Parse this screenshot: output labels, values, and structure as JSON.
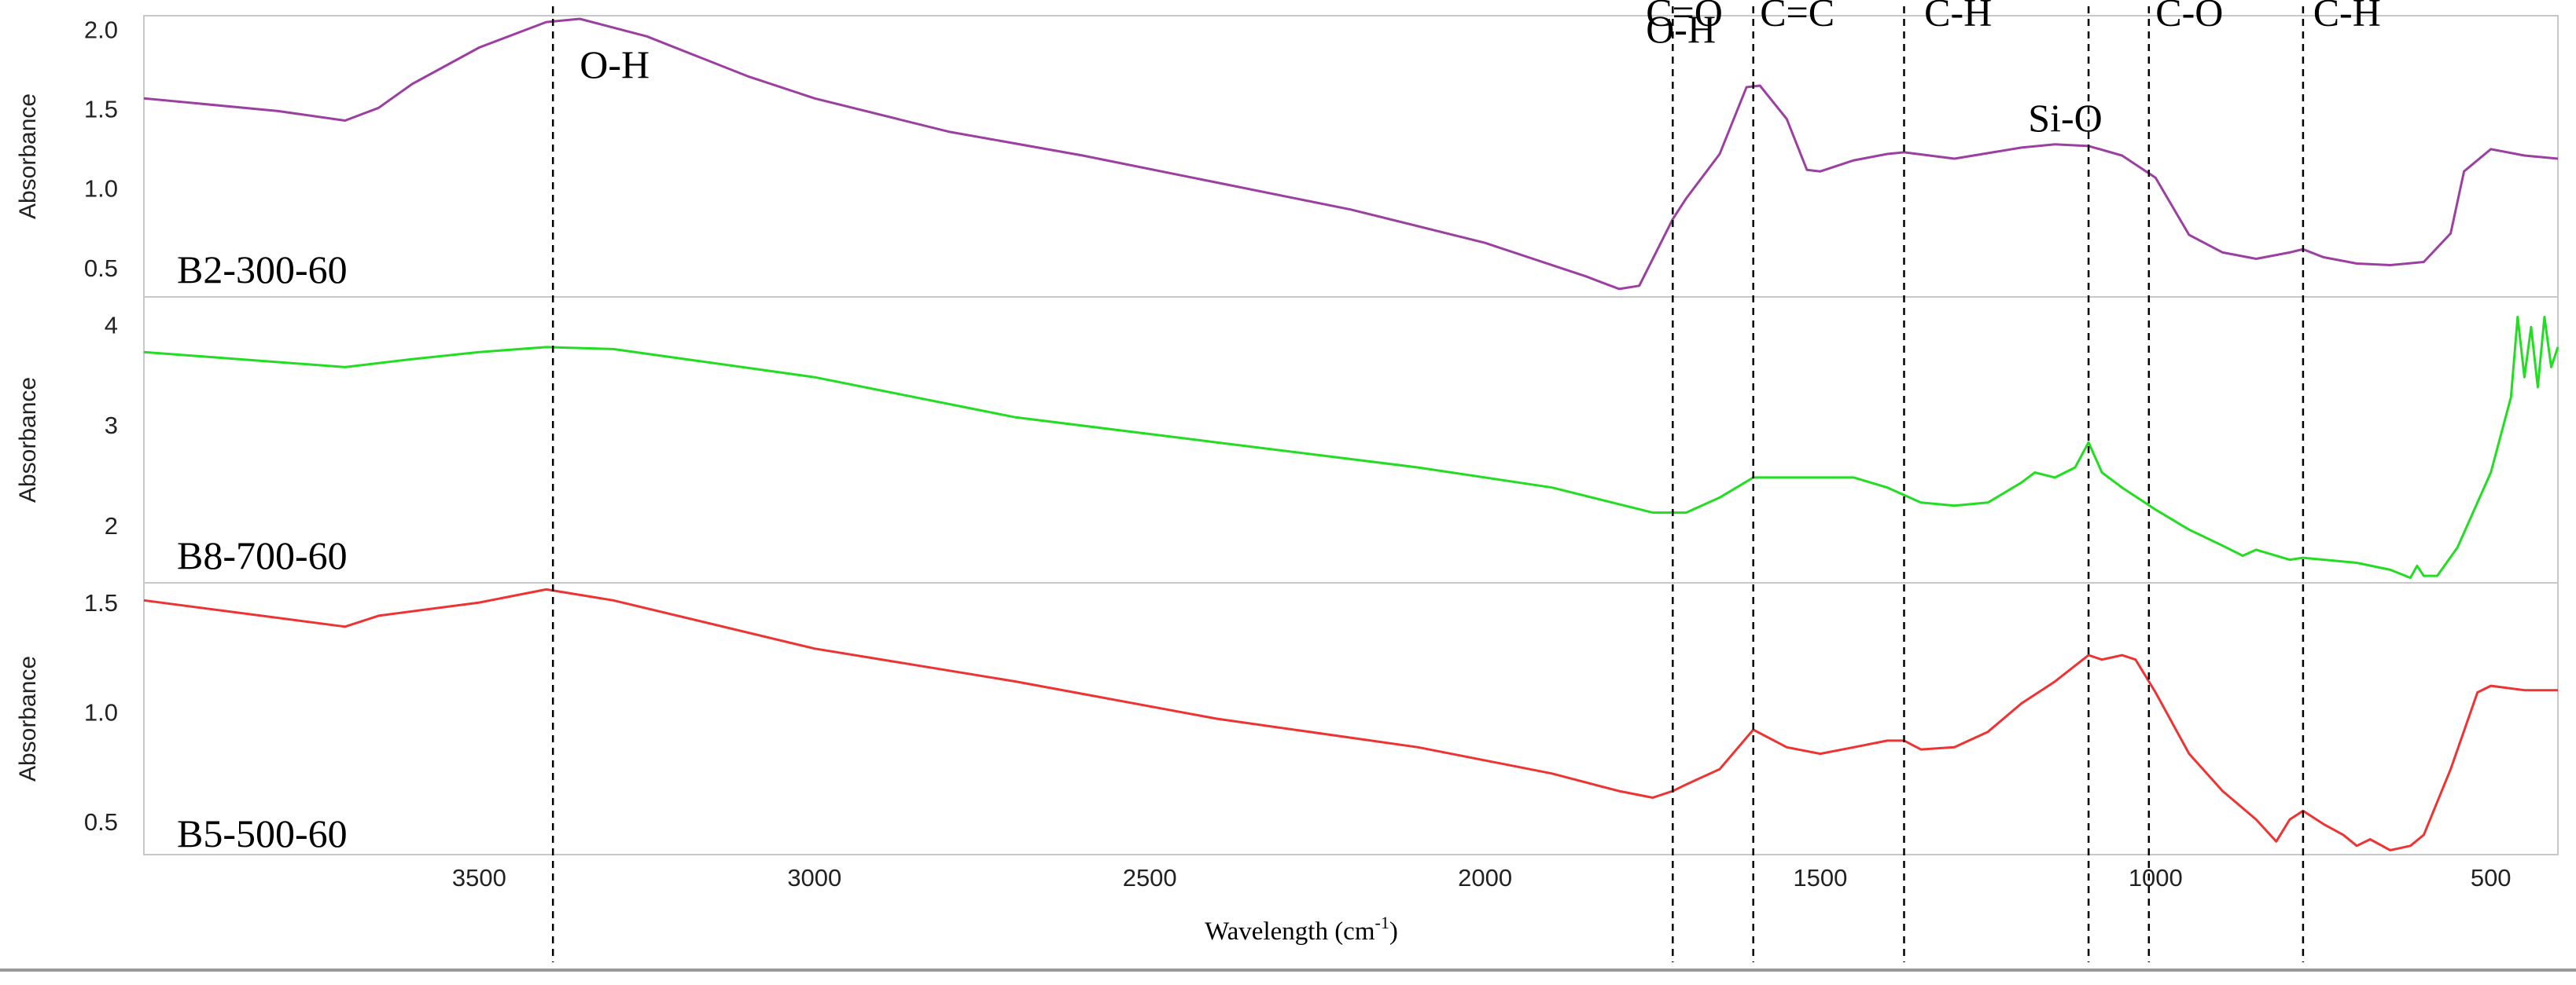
{
  "chart_data": {
    "type": "line",
    "xlabel": "Wavelength (cm",
    "xlabel_sup": "-1",
    "xlabel_end": ")",
    "xlim": [
      4000,
      400
    ],
    "x_ticks": [
      3500,
      3000,
      2500,
      2000,
      1500,
      1000,
      500
    ],
    "band_lines_x": [
      3390,
      1720,
      1600,
      1375,
      1100,
      1010,
      780
    ],
    "band_labels": [
      {
        "text": "O-H",
        "x": 3350,
        "y": 0.78
      },
      {
        "text": "C=O",
        "x": 1760,
        "y": 0.965
      },
      {
        "text": "O-H",
        "x": 1760,
        "y": 0.905
      },
      {
        "text": "C=C",
        "x": 1590,
        "y": 0.965
      },
      {
        "text": "C-H",
        "x": 1345,
        "y": 0.965
      },
      {
        "text": "Si-O",
        "x": 1190,
        "y": 0.59
      },
      {
        "text": "C-O",
        "x": 1000,
        "y": 0.965
      },
      {
        "text": "C-H",
        "x": 765,
        "y": 0.965
      }
    ],
    "panels": [
      {
        "name": "B2-300-60",
        "color": "#9b3fa0",
        "ylabel": "Absorbance",
        "ylim": [
          0.33,
          2.1
        ],
        "y_ticks": [
          "2.0",
          "1.5",
          "1.0",
          "0.5"
        ],
        "y_tick_values": [
          2.0,
          1.5,
          1.0,
          0.5
        ],
        "x": [
          4000,
          3800,
          3700,
          3650,
          3600,
          3500,
          3400,
          3350,
          3250,
          3100,
          3000,
          2800,
          2600,
          2400,
          2200,
          2000,
          1850,
          1800,
          1770,
          1720,
          1700,
          1650,
          1610,
          1590,
          1550,
          1520,
          1500,
          1450,
          1400,
          1375,
          1300,
          1200,
          1150,
          1100,
          1050,
          1000,
          950,
          900,
          850,
          800,
          780,
          750,
          700,
          650,
          600,
          560,
          540,
          500,
          450,
          400
        ],
        "y": [
          1.58,
          1.5,
          1.44,
          1.52,
          1.67,
          1.9,
          2.06,
          2.08,
          1.97,
          1.72,
          1.58,
          1.37,
          1.22,
          1.05,
          0.88,
          0.67,
          0.46,
          0.38,
          0.4,
          0.82,
          0.95,
          1.23,
          1.65,
          1.66,
          1.45,
          1.13,
          1.12,
          1.19,
          1.23,
          1.24,
          1.2,
          1.27,
          1.29,
          1.28,
          1.22,
          1.08,
          0.72,
          0.61,
          0.57,
          0.61,
          0.63,
          0.58,
          0.54,
          0.53,
          0.55,
          0.73,
          1.12,
          1.26,
          1.22,
          1.2
        ]
      },
      {
        "name": "B8-700-60",
        "color": "#22dd22",
        "ylabel": "Absorbance",
        "ylim": [
          1.45,
          4.3
        ],
        "y_ticks": [
          "4",
          "3",
          "2"
        ],
        "y_tick_values": [
          4,
          3,
          2
        ],
        "x": [
          4000,
          3800,
          3700,
          3600,
          3500,
          3400,
          3300,
          3000,
          2700,
          2400,
          2100,
          1900,
          1750,
          1700,
          1650,
          1600,
          1550,
          1500,
          1450,
          1400,
          1350,
          1300,
          1250,
          1200,
          1180,
          1150,
          1120,
          1100,
          1080,
          1050,
          1000,
          950,
          900,
          870,
          850,
          800,
          780,
          700,
          650,
          620,
          610,
          600,
          580,
          550,
          500,
          470,
          460,
          450,
          440,
          430,
          420,
          410,
          400
        ],
        "y": [
          3.75,
          3.65,
          3.6,
          3.68,
          3.75,
          3.8,
          3.78,
          3.5,
          3.1,
          2.85,
          2.6,
          2.4,
          2.15,
          2.15,
          2.3,
          2.5,
          2.5,
          2.5,
          2.5,
          2.4,
          2.25,
          2.22,
          2.25,
          2.45,
          2.55,
          2.5,
          2.6,
          2.85,
          2.55,
          2.4,
          2.18,
          1.98,
          1.82,
          1.72,
          1.78,
          1.68,
          1.7,
          1.65,
          1.58,
          1.5,
          1.62,
          1.52,
          1.52,
          1.8,
          2.55,
          3.3,
          4.1,
          3.5,
          4.0,
          3.4,
          4.1,
          3.6,
          3.8
        ]
      },
      {
        "name": "B5-500-60",
        "color": "#ee3333",
        "ylabel": "Absorbance",
        "ylim": [
          0.36,
          1.6
        ],
        "y_ticks": [
          "1.5",
          "1.0",
          "0.5"
        ],
        "y_tick_values": [
          1.5,
          1.0,
          0.5
        ],
        "x": [
          4000,
          3800,
          3700,
          3650,
          3500,
          3400,
          3300,
          3000,
          2700,
          2400,
          2100,
          1900,
          1800,
          1750,
          1720,
          1700,
          1650,
          1600,
          1550,
          1500,
          1450,
          1400,
          1375,
          1350,
          1300,
          1250,
          1200,
          1150,
          1100,
          1080,
          1050,
          1030,
          1000,
          950,
          900,
          850,
          820,
          800,
          780,
          750,
          720,
          700,
          680,
          650,
          620,
          600,
          560,
          520,
          500,
          450,
          400
        ],
        "y": [
          1.52,
          1.44,
          1.4,
          1.45,
          1.51,
          1.57,
          1.52,
          1.3,
          1.15,
          0.98,
          0.85,
          0.73,
          0.65,
          0.62,
          0.65,
          0.68,
          0.75,
          0.93,
          0.85,
          0.82,
          0.85,
          0.88,
          0.88,
          0.84,
          0.85,
          0.92,
          1.05,
          1.15,
          1.27,
          1.25,
          1.27,
          1.25,
          1.1,
          0.82,
          0.65,
          0.52,
          0.42,
          0.52,
          0.56,
          0.5,
          0.45,
          0.4,
          0.43,
          0.38,
          0.4,
          0.45,
          0.75,
          1.1,
          1.13,
          1.11,
          1.11
        ]
      }
    ]
  }
}
